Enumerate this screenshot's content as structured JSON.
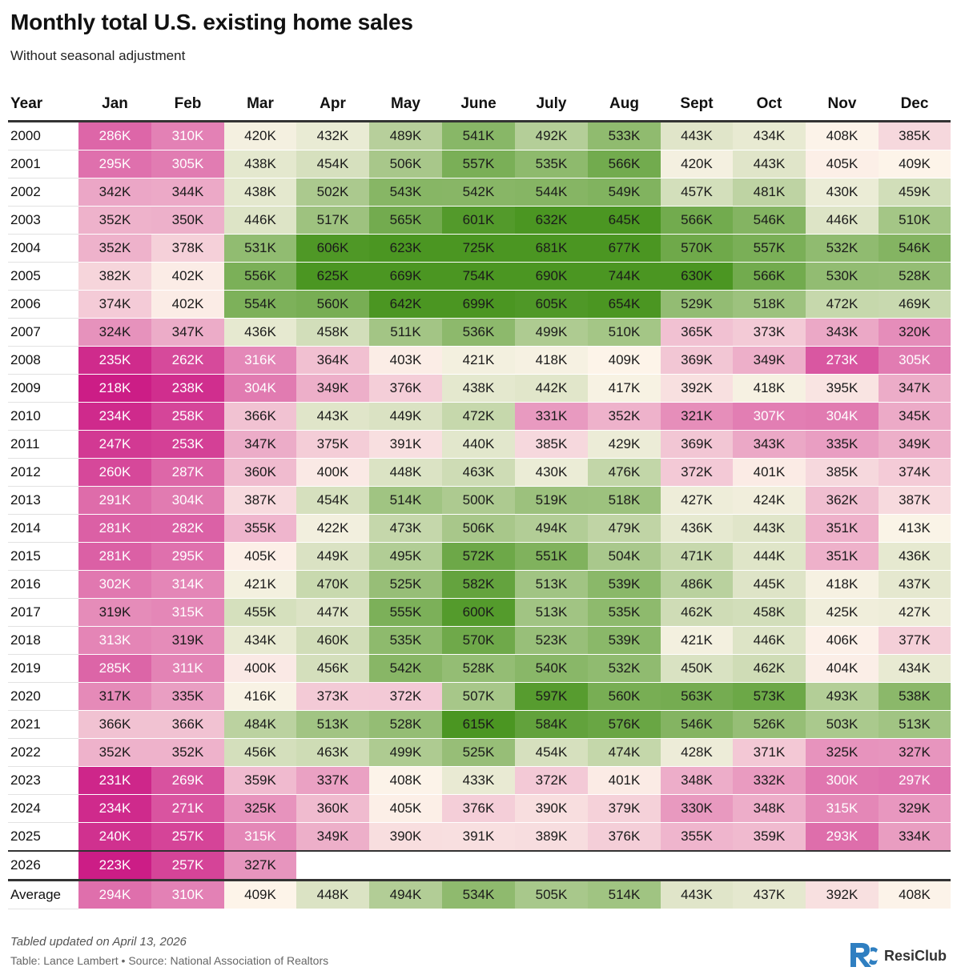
{
  "title": "Monthly total U.S. existing home sales",
  "subtitle": "Without seasonal adjustment",
  "footer": {
    "note": "Tabled updated on April 13, 2026",
    "source": "Table: Lance Lambert • Source: National Association of Realtors",
    "brand": "ResiClub"
  },
  "colors": {
    "low": "#cc1d86",
    "mid": "#fdf5ea",
    "high": "#4b9622",
    "text_dark": "#1a1a1a",
    "text_light": "#ffffff"
  },
  "chart_data": {
    "type": "heatmap",
    "title": "Monthly total U.S. existing home sales",
    "subtitle": "Without seasonal adjustment",
    "row_header": "Year",
    "columns": [
      "Jan",
      "Feb",
      "Mar",
      "Apr",
      "May",
      "June",
      "July",
      "Aug",
      "Sept",
      "Oct",
      "Nov",
      "Dec"
    ],
    "unit": "K",
    "color_scale": {
      "min": 223,
      "mid": 410,
      "max": 610
    },
    "rows": [
      {
        "label": "2000",
        "values": [
          286,
          310,
          420,
          432,
          489,
          541,
          492,
          533,
          443,
          434,
          408,
          385
        ]
      },
      {
        "label": "2001",
        "values": [
          295,
          305,
          438,
          454,
          506,
          557,
          535,
          566,
          420,
          443,
          405,
          409
        ]
      },
      {
        "label": "2002",
        "values": [
          342,
          344,
          438,
          502,
          543,
          542,
          544,
          549,
          457,
          481,
          430,
          459
        ]
      },
      {
        "label": "2003",
        "values": [
          352,
          350,
          446,
          517,
          565,
          601,
          632,
          645,
          566,
          546,
          446,
          510
        ]
      },
      {
        "label": "2004",
        "values": [
          352,
          378,
          531,
          606,
          623,
          725,
          681,
          677,
          570,
          557,
          532,
          546
        ]
      },
      {
        "label": "2005",
        "values": [
          382,
          402,
          556,
          625,
          669,
          754,
          690,
          744,
          630,
          566,
          530,
          528
        ]
      },
      {
        "label": "2006",
        "values": [
          374,
          402,
          554,
          560,
          642,
          699,
          605,
          654,
          529,
          518,
          472,
          469
        ]
      },
      {
        "label": "2007",
        "values": [
          324,
          347,
          436,
          458,
          511,
          536,
          499,
          510,
          365,
          373,
          343,
          320
        ]
      },
      {
        "label": "2008",
        "values": [
          235,
          262,
          316,
          364,
          403,
          421,
          418,
          409,
          369,
          349,
          273,
          305
        ]
      },
      {
        "label": "2009",
        "values": [
          218,
          238,
          304,
          349,
          376,
          438,
          442,
          417,
          392,
          418,
          395,
          347
        ]
      },
      {
        "label": "2010",
        "values": [
          234,
          258,
          366,
          443,
          449,
          472,
          331,
          352,
          321,
          307,
          304,
          345
        ]
      },
      {
        "label": "2011",
        "values": [
          247,
          253,
          347,
          375,
          391,
          440,
          385,
          429,
          369,
          343,
          335,
          349
        ]
      },
      {
        "label": "2012",
        "values": [
          260,
          287,
          360,
          400,
          448,
          463,
          430,
          476,
          372,
          401,
          385,
          374
        ]
      },
      {
        "label": "2013",
        "values": [
          291,
          304,
          387,
          454,
          514,
          500,
          519,
          518,
          427,
          424,
          362,
          387
        ]
      },
      {
        "label": "2014",
        "values": [
          281,
          282,
          355,
          422,
          473,
          506,
          494,
          479,
          436,
          443,
          351,
          413
        ]
      },
      {
        "label": "2015",
        "values": [
          281,
          295,
          405,
          449,
          495,
          572,
          551,
          504,
          471,
          444,
          351,
          436
        ]
      },
      {
        "label": "2016",
        "values": [
          302,
          314,
          421,
          470,
          525,
          582,
          513,
          539,
          486,
          445,
          418,
          437
        ]
      },
      {
        "label": "2017",
        "values": [
          319,
          315,
          455,
          447,
          555,
          600,
          513,
          535,
          462,
          458,
          425,
          427
        ]
      },
      {
        "label": "2018",
        "values": [
          313,
          319,
          434,
          460,
          535,
          570,
          523,
          539,
          421,
          446,
          406,
          377
        ]
      },
      {
        "label": "2019",
        "values": [
          285,
          311,
          400,
          456,
          542,
          528,
          540,
          532,
          450,
          462,
          404,
          434
        ]
      },
      {
        "label": "2020",
        "values": [
          317,
          335,
          416,
          373,
          372,
          507,
          597,
          560,
          563,
          573,
          493,
          538
        ]
      },
      {
        "label": "2021",
        "values": [
          366,
          366,
          484,
          513,
          528,
          615,
          584,
          576,
          546,
          526,
          503,
          513
        ]
      },
      {
        "label": "2022",
        "values": [
          352,
          352,
          456,
          463,
          499,
          525,
          454,
          474,
          428,
          371,
          325,
          327
        ]
      },
      {
        "label": "2023",
        "values": [
          231,
          269,
          359,
          337,
          408,
          433,
          372,
          401,
          348,
          332,
          300,
          297
        ]
      },
      {
        "label": "2024",
        "values": [
          234,
          271,
          325,
          360,
          405,
          376,
          390,
          379,
          330,
          348,
          315,
          329
        ]
      },
      {
        "label": "2025",
        "values": [
          240,
          257,
          315,
          349,
          390,
          391,
          389,
          376,
          355,
          359,
          293,
          334
        ]
      },
      {
        "label": "2026",
        "values": [
          223,
          257,
          327,
          null,
          null,
          null,
          null,
          null,
          null,
          null,
          null,
          null
        ]
      },
      {
        "label": "Average",
        "values": [
          294,
          310,
          409,
          448,
          494,
          534,
          505,
          514,
          443,
          437,
          392,
          408
        ]
      }
    ]
  }
}
